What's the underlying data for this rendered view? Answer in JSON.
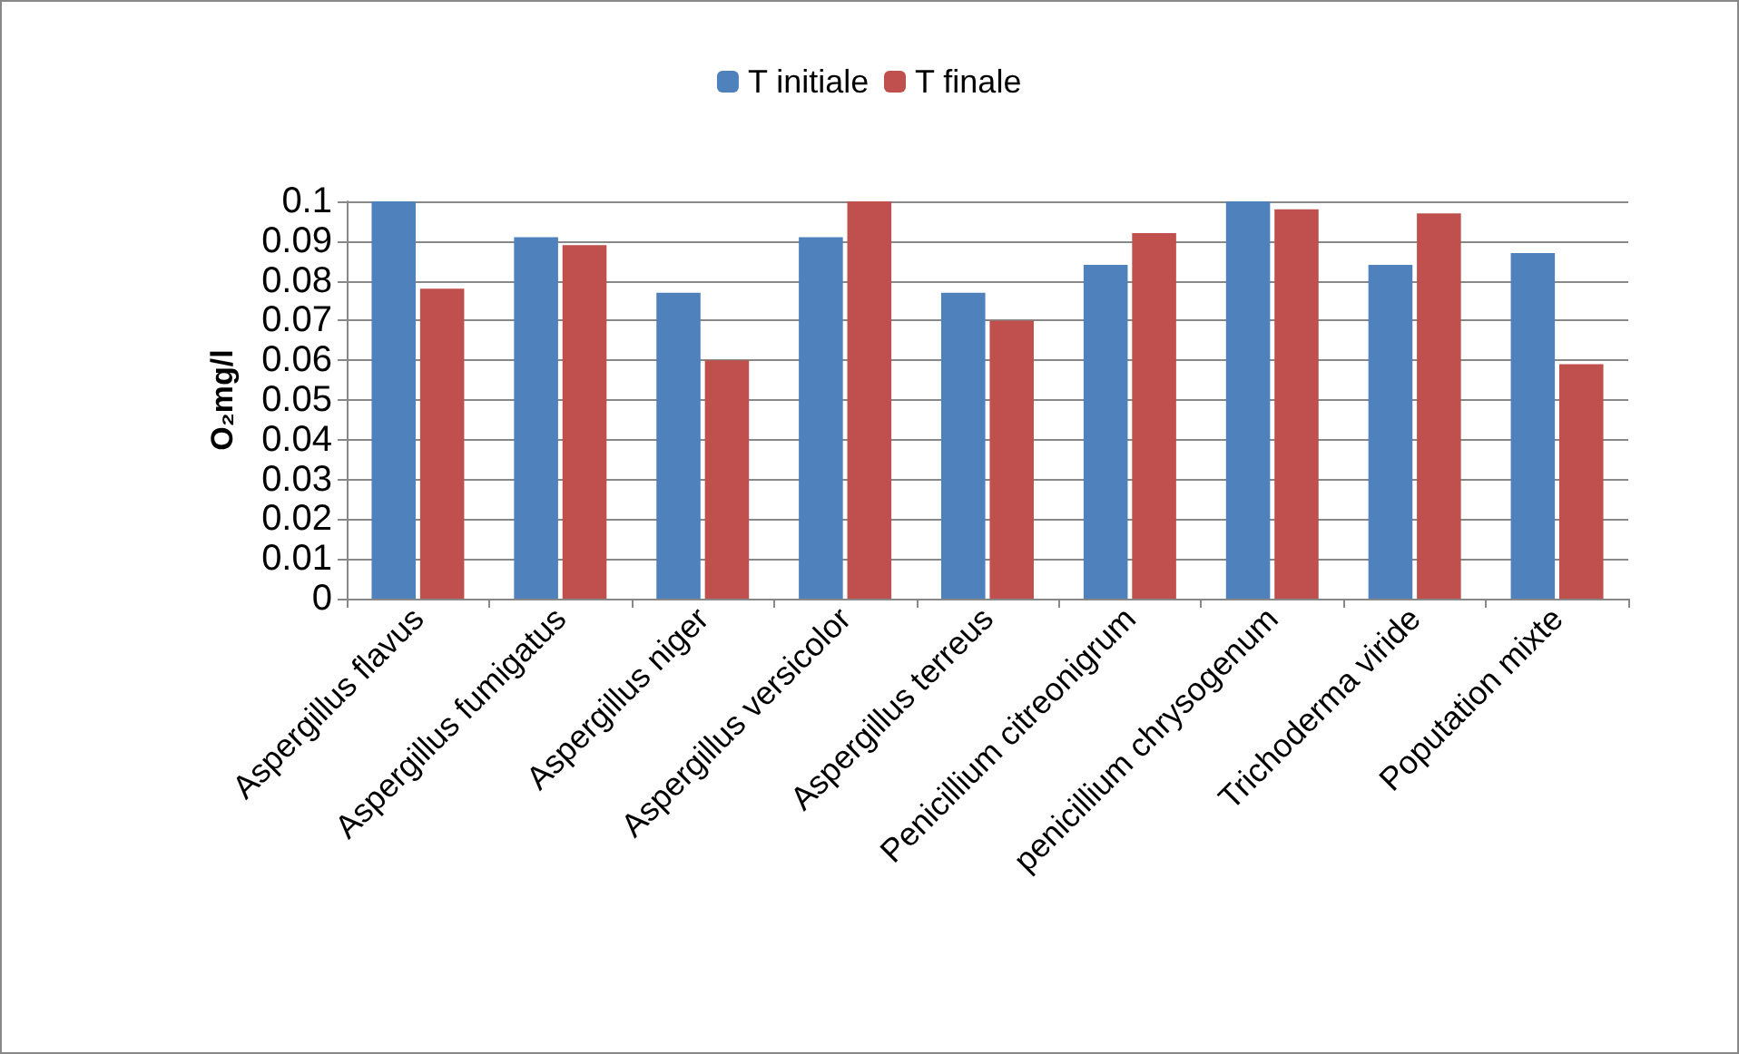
{
  "chart_data": {
    "type": "bar",
    "ylabel": "O₂mg/l",
    "categories": [
      "Aspergillus flavus",
      "Aspergillus fumigatus",
      "Aspergillus niger",
      "Aspergillus versicolor",
      "Aspergillus terreus",
      "Penicillium citreonigrum",
      "penicillium chrysogenum",
      "Trichoderma viride",
      "Poputation mixte"
    ],
    "series": [
      {
        "name": "T initiale",
        "color": "#4f81bd",
        "values": [
          0.1,
          0.091,
          0.077,
          0.091,
          0.077,
          0.084,
          0.1,
          0.084,
          0.087
        ]
      },
      {
        "name": "T finale",
        "color": "#c0504d",
        "values": [
          0.078,
          0.089,
          0.06,
          0.1,
          0.07,
          0.092,
          0.098,
          0.097,
          0.059
        ]
      }
    ],
    "ylim": [
      0,
      0.1
    ],
    "yticks": [
      0,
      0.01,
      0.02,
      0.03,
      0.04,
      0.05,
      0.06,
      0.07,
      0.08,
      0.09,
      0.1
    ],
    "grid": "y",
    "legend": "top"
  }
}
